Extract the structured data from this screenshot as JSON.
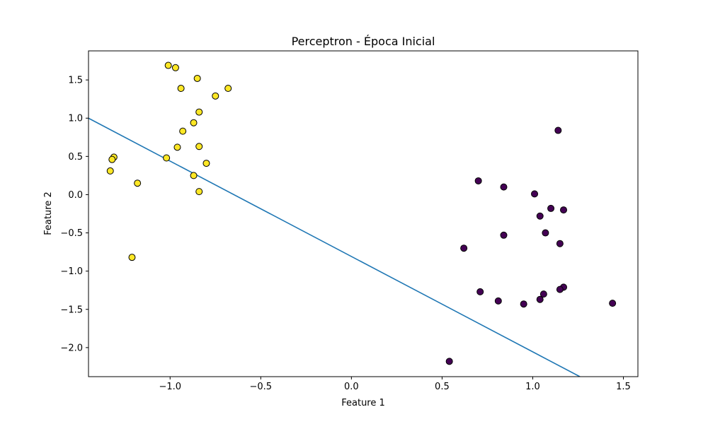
{
  "chart_data": {
    "type": "scatter",
    "title": "Perceptron - Época Inicial",
    "xlabel": "Feature 1",
    "ylabel": "Feature 2",
    "xlim": [
      -1.45,
      1.58
    ],
    "ylim": [
      -2.38,
      1.88
    ],
    "x_ticks": [
      -1.0,
      -0.5,
      0.0,
      0.5,
      1.0,
      1.5
    ],
    "x_tick_labels": [
      "−1.0",
      "−0.5",
      "0.0",
      "0.5",
      "1.0",
      "1.5"
    ],
    "y_ticks": [
      -2.0,
      -1.5,
      -1.0,
      -0.5,
      0.0,
      0.5,
      1.0,
      1.5
    ],
    "y_tick_labels": [
      "−2.0",
      "−1.5",
      "−1.0",
      "−0.5",
      "0.0",
      "0.5",
      "1.0",
      "1.5"
    ],
    "grid": false,
    "colors": {
      "class_yellow": "#fde725",
      "class_purple": "#440154",
      "marker_edge": "#000000",
      "line": "#1f77b4"
    },
    "series": [
      {
        "color": "#fde725",
        "points": [
          [
            -1.01,
            1.69
          ],
          [
            -0.97,
            1.66
          ],
          [
            -0.85,
            1.52
          ],
          [
            -0.94,
            1.39
          ],
          [
            -0.68,
            1.39
          ],
          [
            -0.75,
            1.29
          ],
          [
            -0.84,
            1.08
          ],
          [
            -0.87,
            0.94
          ],
          [
            -0.93,
            0.83
          ],
          [
            -0.96,
            0.62
          ],
          [
            -0.84,
            0.63
          ],
          [
            -1.31,
            0.49
          ],
          [
            -1.32,
            0.46
          ],
          [
            -1.02,
            0.48
          ],
          [
            -0.8,
            0.41
          ],
          [
            -1.33,
            0.31
          ],
          [
            -0.87,
            0.25
          ],
          [
            -1.18,
            0.15
          ],
          [
            -0.84,
            0.04
          ],
          [
            -1.21,
            -0.82
          ]
        ]
      },
      {
        "color": "#440154",
        "points": [
          [
            1.14,
            0.84
          ],
          [
            0.7,
            0.18
          ],
          [
            0.84,
            0.1
          ],
          [
            1.01,
            0.01
          ],
          [
            1.1,
            -0.18
          ],
          [
            1.17,
            -0.2
          ],
          [
            1.04,
            -0.28
          ],
          [
            1.07,
            -0.5
          ],
          [
            0.84,
            -0.53
          ],
          [
            1.15,
            -0.64
          ],
          [
            0.62,
            -0.7
          ],
          [
            0.71,
            -1.27
          ],
          [
            1.17,
            -1.21
          ],
          [
            1.15,
            -1.24
          ],
          [
            1.06,
            -1.3
          ],
          [
            0.81,
            -1.39
          ],
          [
            1.04,
            -1.37
          ],
          [
            0.95,
            -1.43
          ],
          [
            1.44,
            -1.42
          ],
          [
            0.54,
            -2.18
          ]
        ]
      }
    ],
    "line": {
      "x": [
        -1.45,
        1.26
      ],
      "y": [
        1.0,
        -2.38
      ]
    }
  }
}
